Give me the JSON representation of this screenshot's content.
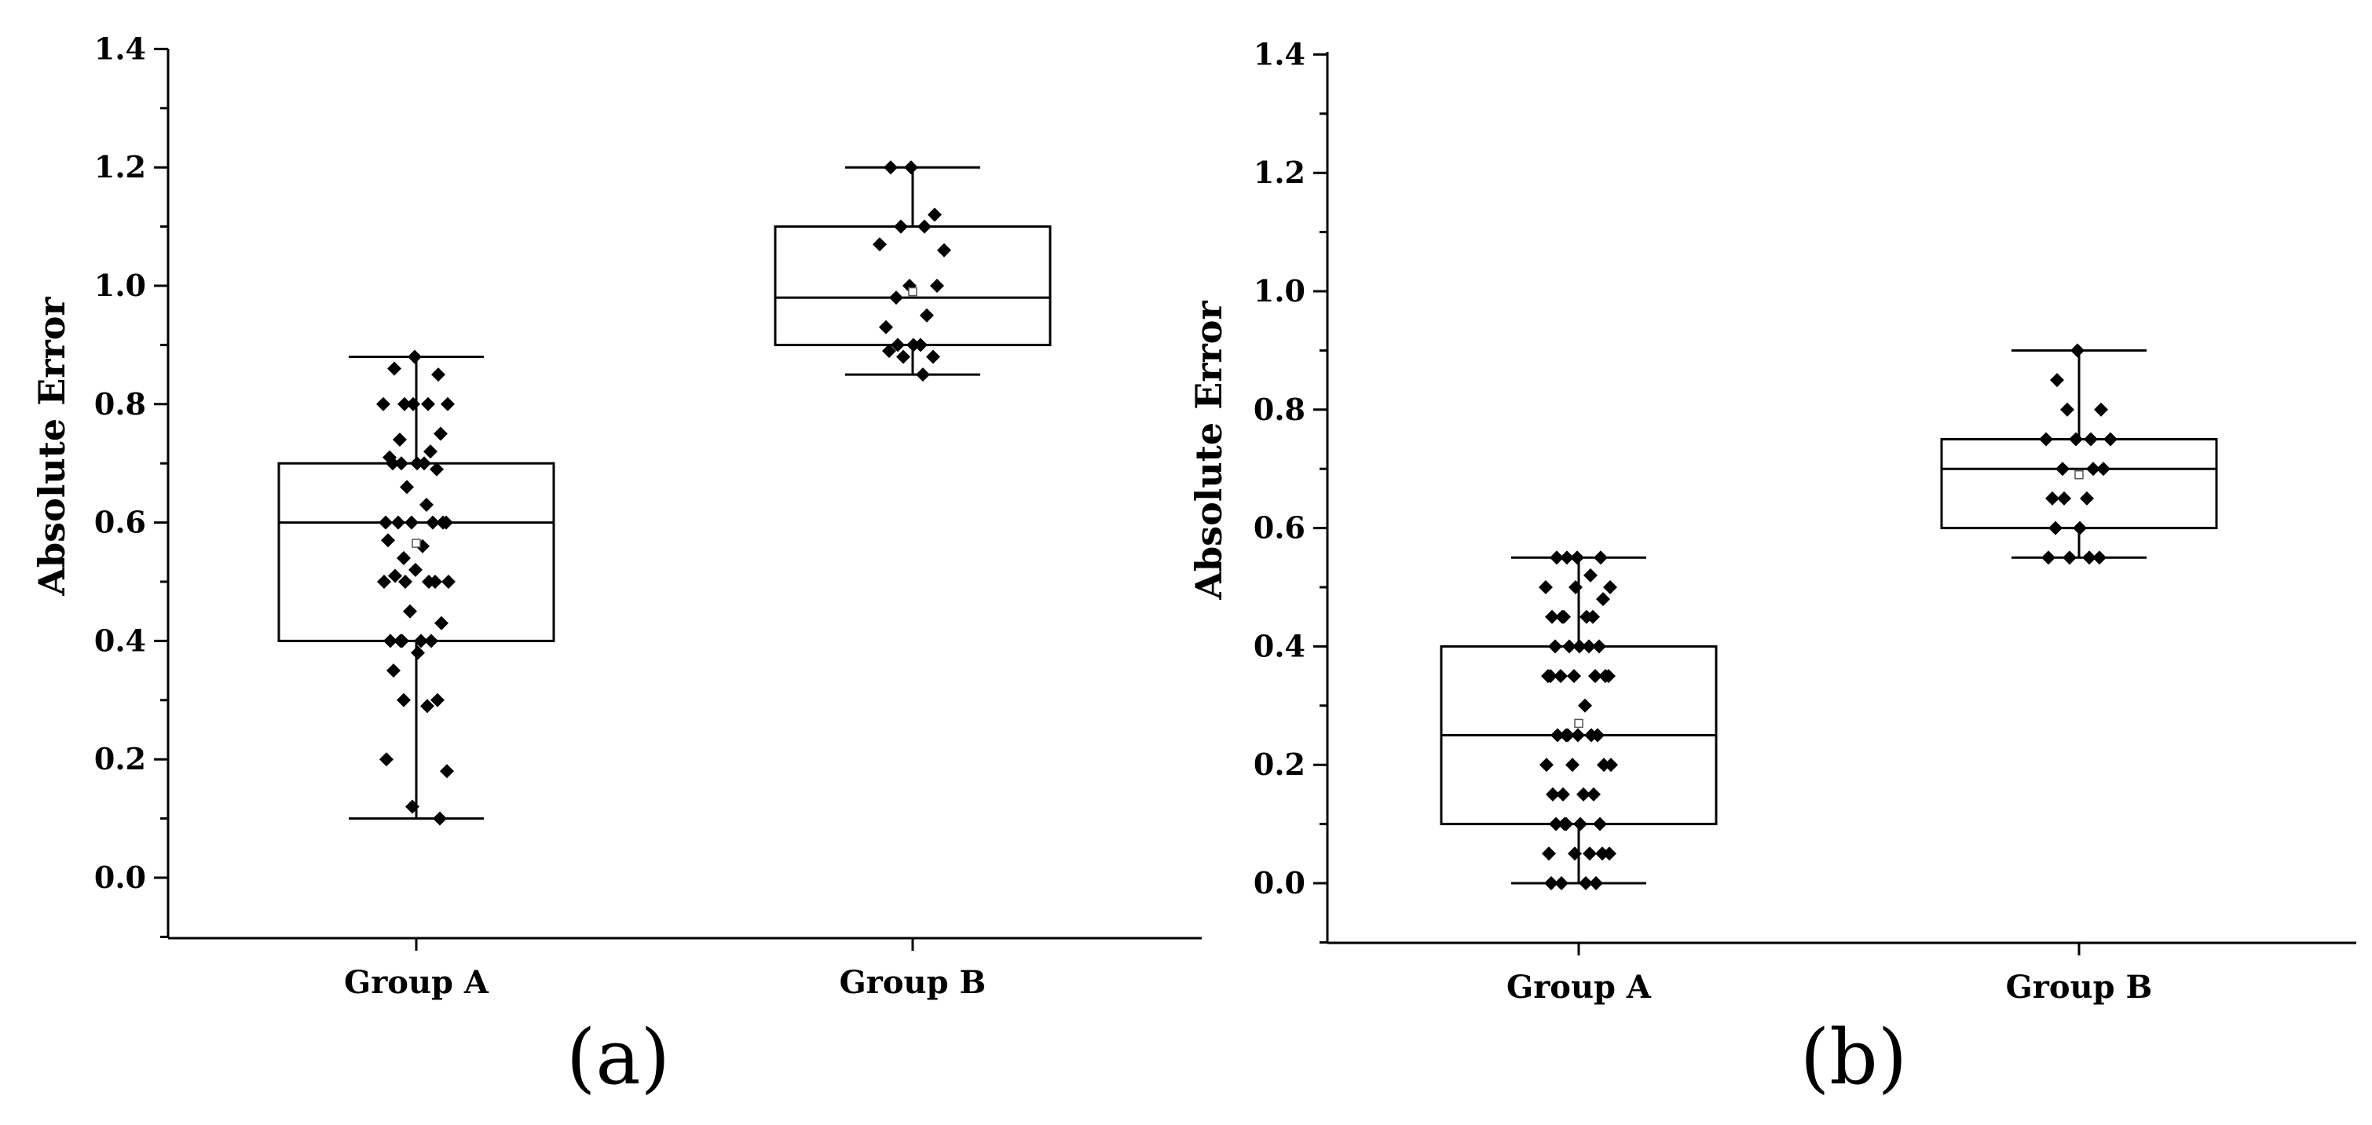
{
  "chart_data": [
    {
      "type": "box",
      "panel_label": "(a)",
      "ylabel": "Absolute Error",
      "ylim": [
        -0.1,
        1.4
      ],
      "yticks": [
        "0.0",
        "0.2",
        "0.4",
        "0.6",
        "0.8",
        "1.0",
        "1.2",
        "1.4"
      ],
      "categories": [
        "Group A",
        "Group B"
      ],
      "boxes": [
        {
          "name": "Group A",
          "whisker_low": 0.1,
          "q1": 0.4,
          "median": 0.6,
          "q3": 0.7,
          "whisker_high": 0.88,
          "mean": 0.565,
          "points": [
            0.88,
            0.86,
            0.85,
            0.8,
            0.8,
            0.8,
            0.8,
            0.8,
            0.75,
            0.74,
            0.72,
            0.71,
            0.7,
            0.7,
            0.7,
            0.7,
            0.69,
            0.66,
            0.63,
            0.6,
            0.6,
            0.6,
            0.6,
            0.6,
            0.6,
            0.57,
            0.56,
            0.54,
            0.52,
            0.51,
            0.5,
            0.5,
            0.5,
            0.5,
            0.5,
            0.45,
            0.43,
            0.4,
            0.4,
            0.4,
            0.4,
            0.4,
            0.38,
            0.35,
            0.3,
            0.3,
            0.29,
            0.2,
            0.18,
            0.12,
            0.1
          ]
        },
        {
          "name": "Group B",
          "whisker_low": 0.85,
          "q1": 0.9,
          "median": 0.98,
          "q3": 1.1,
          "whisker_high": 1.2,
          "mean": 0.99,
          "points": [
            1.2,
            1.2,
            1.12,
            1.1,
            1.1,
            1.07,
            1.06,
            1.0,
            1.0,
            0.98,
            0.95,
            0.93,
            0.9,
            0.9,
            0.9,
            0.89,
            0.88,
            0.88,
            0.85
          ]
        }
      ]
    },
    {
      "type": "box",
      "panel_label": "(b)",
      "ylabel": "Absolute Error",
      "ylim": [
        -0.1,
        1.4
      ],
      "yticks": [
        "0.0",
        "0.2",
        "0.4",
        "0.6",
        "0.8",
        "1.0",
        "1.2",
        "1.4"
      ],
      "categories": [
        "Group A",
        "Group B"
      ],
      "boxes": [
        {
          "name": "Group A",
          "whisker_low": 0.0,
          "q1": 0.1,
          "median": 0.25,
          "q3": 0.4,
          "whisker_high": 0.55,
          "mean": 0.27,
          "points": [
            0.55,
            0.55,
            0.55,
            0.55,
            0.52,
            0.5,
            0.5,
            0.5,
            0.48,
            0.45,
            0.45,
            0.45,
            0.45,
            0.45,
            0.4,
            0.4,
            0.4,
            0.4,
            0.4,
            0.35,
            0.35,
            0.35,
            0.35,
            0.35,
            0.35,
            0.35,
            0.3,
            0.25,
            0.25,
            0.25,
            0.25,
            0.25,
            0.25,
            0.2,
            0.2,
            0.2,
            0.2,
            0.15,
            0.15,
            0.15,
            0.15,
            0.1,
            0.1,
            0.1,
            0.1,
            0.1,
            0.05,
            0.05,
            0.05,
            0.05,
            0.05,
            0.0,
            0.0,
            0.0,
            0.0
          ]
        },
        {
          "name": "Group B",
          "whisker_low": 0.55,
          "q1": 0.6,
          "median": 0.7,
          "q3": 0.75,
          "whisker_high": 0.9,
          "mean": 0.69,
          "points": [
            0.9,
            0.85,
            0.8,
            0.8,
            0.75,
            0.75,
            0.75,
            0.75,
            0.7,
            0.7,
            0.7,
            0.65,
            0.65,
            0.65,
            0.6,
            0.6,
            0.55,
            0.55,
            0.55,
            0.55
          ]
        }
      ]
    }
  ]
}
